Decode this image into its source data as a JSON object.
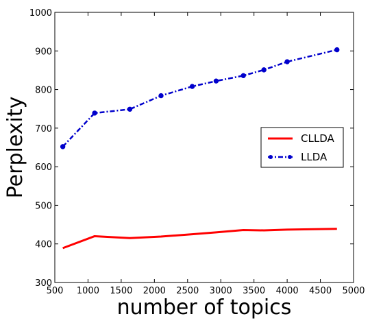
{
  "chart_data": {
    "type": "line",
    "xlabel": "number of topics",
    "ylabel": "Perplexity",
    "xlim": [
      500,
      5000
    ],
    "ylim": [
      300,
      1000
    ],
    "xticks": [
      500,
      1000,
      1500,
      2000,
      2500,
      3000,
      3500,
      4000,
      4500,
      5000
    ],
    "yticks": [
      300,
      400,
      500,
      600,
      700,
      800,
      900,
      1000
    ],
    "grid": false,
    "legend_position": "center-right",
    "series": [
      {
        "name": "CLLDA",
        "color": "#ff0000",
        "style": "solid",
        "marker": "none",
        "x": [
          620,
          1100,
          1630,
          2100,
          2570,
          2930,
          3340,
          3650,
          4000,
          4750
        ],
        "y": [
          389,
          420,
          415,
          419,
          425,
          430,
          436,
          435,
          437,
          439
        ]
      },
      {
        "name": "LLDA",
        "color": "#0000cc",
        "style": "dashdot",
        "marker": "circle",
        "x": [
          620,
          1100,
          1630,
          2100,
          2570,
          2930,
          3340,
          3650,
          4000,
          4750
        ],
        "y": [
          652,
          739,
          749,
          784,
          808,
          822,
          836,
          851,
          872,
          903
        ]
      }
    ]
  }
}
